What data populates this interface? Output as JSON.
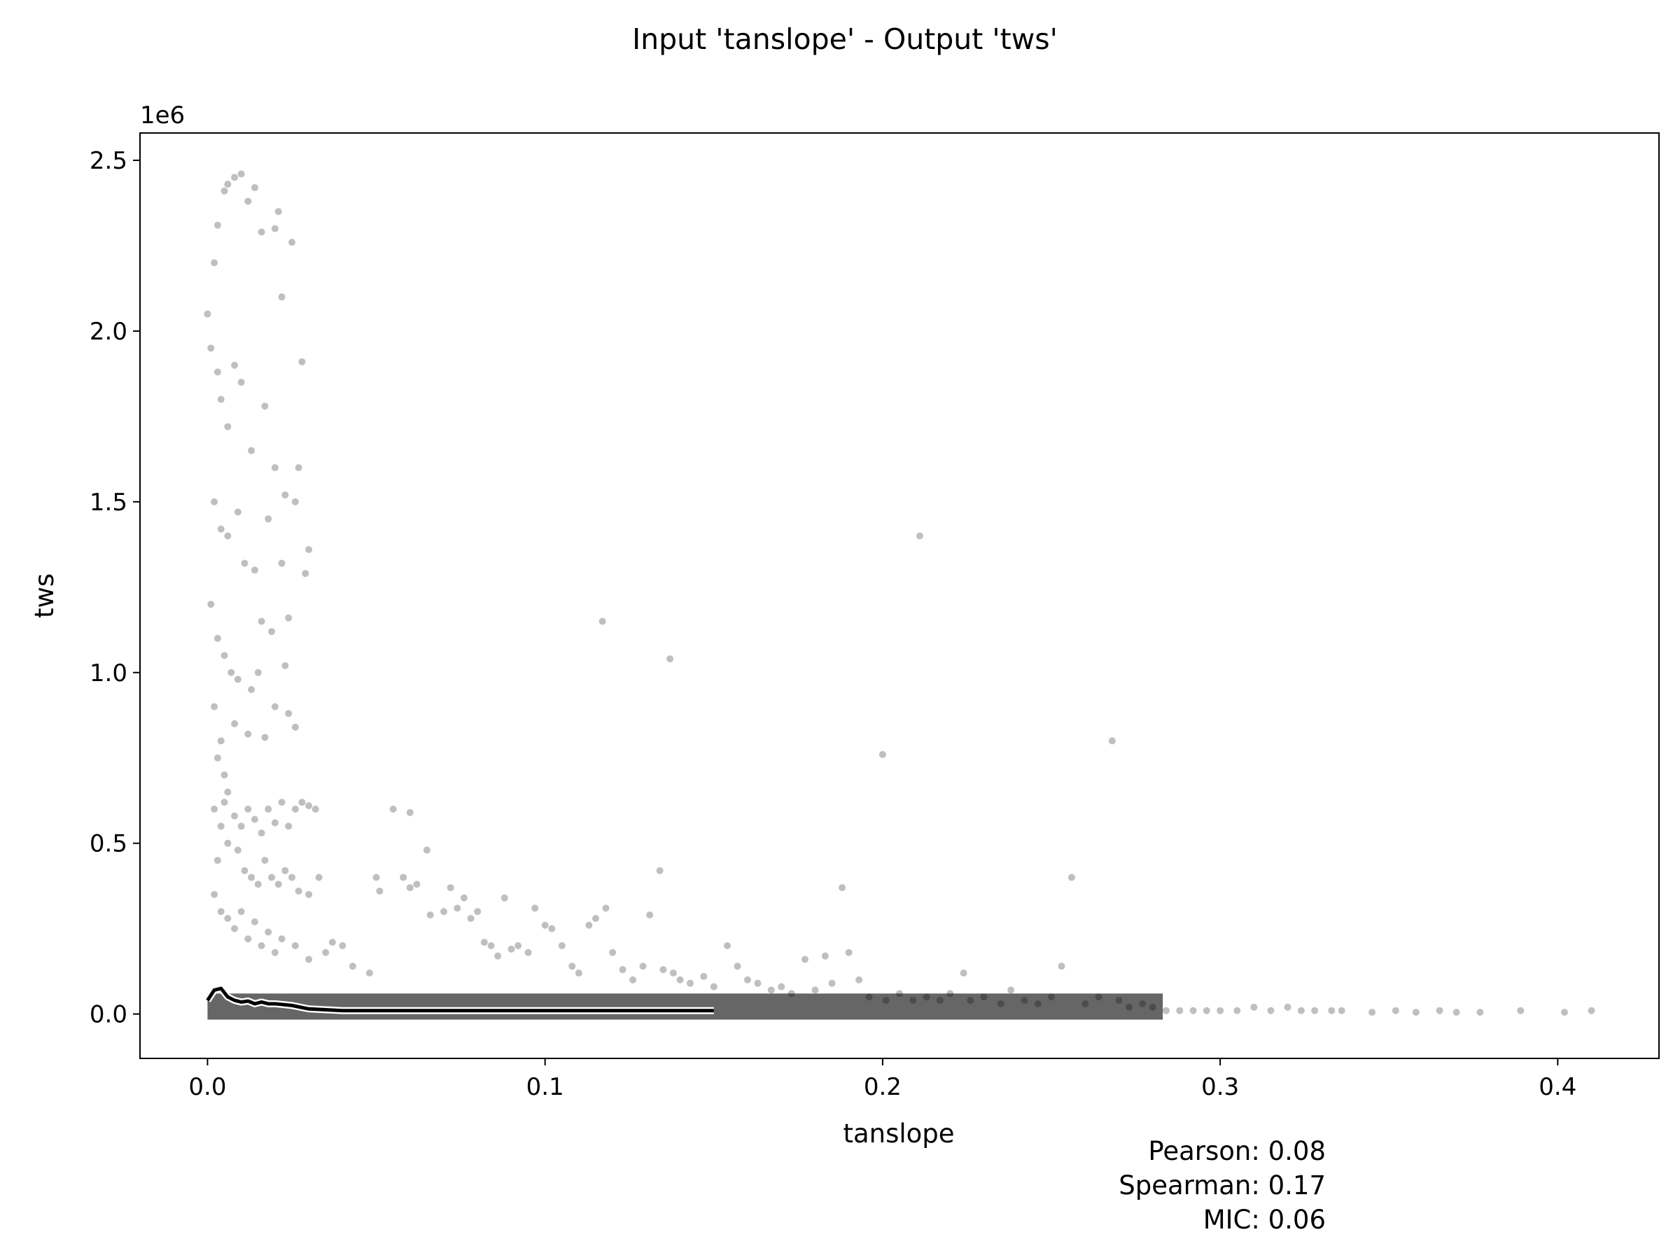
{
  "chart_data": {
    "type": "scatter",
    "title": "Input 'tanslope' - Output 'tws'",
    "xlabel": "tanslope",
    "ylabel": "tws",
    "y_offset_label": "1e6",
    "xlim": [
      -0.02,
      0.43
    ],
    "ylim": [
      -0.13,
      2.58
    ],
    "x_ticks": [
      0.0,
      0.1,
      0.2,
      0.3,
      0.4
    ],
    "x_tick_labels": [
      "0.0",
      "0.1",
      "0.2",
      "0.3",
      "0.4"
    ],
    "y_ticks": [
      0.0,
      0.5,
      1.0,
      1.5,
      2.0,
      2.5
    ],
    "y_tick_labels": [
      "0.0",
      "0.5",
      "1.0",
      "1.5",
      "2.0",
      "2.5"
    ],
    "grid": false,
    "marker_color": "#000000",
    "marker_opacity": 0.25,
    "trend_line_color": "#000000",
    "trend_line_outline": "#ffffff",
    "series": [
      {
        "values": [
          [
            0.0,
            2.05
          ],
          [
            0.002,
            2.2
          ],
          [
            0.003,
            2.31
          ],
          [
            0.005,
            2.41
          ],
          [
            0.006,
            2.43
          ],
          [
            0.008,
            2.45
          ],
          [
            0.01,
            2.46
          ],
          [
            0.012,
            2.38
          ],
          [
            0.014,
            2.42
          ],
          [
            0.016,
            2.29
          ],
          [
            0.02,
            2.3
          ],
          [
            0.022,
            2.1
          ],
          [
            0.025,
            2.26
          ],
          [
            0.021,
            2.35
          ],
          [
            0.001,
            1.95
          ],
          [
            0.003,
            1.88
          ],
          [
            0.004,
            1.8
          ],
          [
            0.006,
            1.72
          ],
          [
            0.008,
            1.9
          ],
          [
            0.01,
            1.85
          ],
          [
            0.013,
            1.65
          ],
          [
            0.017,
            1.78
          ],
          [
            0.02,
            1.6
          ],
          [
            0.023,
            1.52
          ],
          [
            0.026,
            1.5
          ],
          [
            0.028,
            1.91
          ],
          [
            0.027,
            1.6
          ],
          [
            0.03,
            1.36
          ],
          [
            0.002,
            1.5
          ],
          [
            0.004,
            1.42
          ],
          [
            0.006,
            1.4
          ],
          [
            0.009,
            1.47
          ],
          [
            0.011,
            1.32
          ],
          [
            0.014,
            1.3
          ],
          [
            0.018,
            1.45
          ],
          [
            0.022,
            1.32
          ],
          [
            0.029,
            1.29
          ],
          [
            0.024,
            1.16
          ],
          [
            0.019,
            1.12
          ],
          [
            0.016,
            1.15
          ],
          [
            0.001,
            1.2
          ],
          [
            0.003,
            1.1
          ],
          [
            0.005,
            1.05
          ],
          [
            0.007,
            1.0
          ],
          [
            0.009,
            0.98
          ],
          [
            0.013,
            0.95
          ],
          [
            0.015,
            1.0
          ],
          [
            0.02,
            0.9
          ],
          [
            0.023,
            1.02
          ],
          [
            0.024,
            0.88
          ],
          [
            0.026,
            0.84
          ],
          [
            0.017,
            0.81
          ],
          [
            0.012,
            0.82
          ],
          [
            0.008,
            0.85
          ],
          [
            0.002,
            0.9
          ],
          [
            0.004,
            0.8
          ],
          [
            0.003,
            0.75
          ],
          [
            0.005,
            0.7
          ],
          [
            0.006,
            0.65
          ],
          [
            0.002,
            0.6
          ],
          [
            0.004,
            0.55
          ],
          [
            0.006,
            0.5
          ],
          [
            0.003,
            0.45
          ],
          [
            0.005,
            0.62
          ],
          [
            0.008,
            0.58
          ],
          [
            0.01,
            0.55
          ],
          [
            0.012,
            0.6
          ],
          [
            0.014,
            0.57
          ],
          [
            0.016,
            0.53
          ],
          [
            0.018,
            0.6
          ],
          [
            0.02,
            0.56
          ],
          [
            0.022,
            0.62
          ],
          [
            0.024,
            0.55
          ],
          [
            0.026,
            0.6
          ],
          [
            0.028,
            0.62
          ],
          [
            0.03,
            0.61
          ],
          [
            0.032,
            0.6
          ],
          [
            0.009,
            0.48
          ],
          [
            0.011,
            0.42
          ],
          [
            0.013,
            0.4
          ],
          [
            0.015,
            0.38
          ],
          [
            0.017,
            0.45
          ],
          [
            0.019,
            0.4
          ],
          [
            0.021,
            0.38
          ],
          [
            0.023,
            0.42
          ],
          [
            0.025,
            0.4
          ],
          [
            0.027,
            0.36
          ],
          [
            0.03,
            0.35
          ],
          [
            0.033,
            0.4
          ],
          [
            0.002,
            0.35
          ],
          [
            0.004,
            0.3
          ],
          [
            0.006,
            0.28
          ],
          [
            0.008,
            0.25
          ],
          [
            0.01,
            0.3
          ],
          [
            0.012,
            0.22
          ],
          [
            0.014,
            0.27
          ],
          [
            0.016,
            0.2
          ],
          [
            0.018,
            0.24
          ],
          [
            0.02,
            0.18
          ],
          [
            0.022,
            0.22
          ],
          [
            0.026,
            0.2
          ],
          [
            0.03,
            0.16
          ],
          [
            0.035,
            0.18
          ],
          [
            0.04,
            0.2
          ],
          [
            0.037,
            0.21
          ],
          [
            0.043,
            0.14
          ],
          [
            0.048,
            0.12
          ],
          [
            0.05,
            0.4
          ],
          [
            0.051,
            0.36
          ],
          [
            0.055,
            0.6
          ],
          [
            0.058,
            0.4
          ],
          [
            0.06,
            0.59
          ],
          [
            0.06,
            0.37
          ],
          [
            0.062,
            0.38
          ],
          [
            0.065,
            0.48
          ],
          [
            0.066,
            0.29
          ],
          [
            0.07,
            0.3
          ],
          [
            0.072,
            0.37
          ],
          [
            0.074,
            0.31
          ],
          [
            0.076,
            0.34
          ],
          [
            0.078,
            0.28
          ],
          [
            0.08,
            0.3
          ],
          [
            0.082,
            0.21
          ],
          [
            0.084,
            0.2
          ],
          [
            0.086,
            0.17
          ],
          [
            0.088,
            0.34
          ],
          [
            0.09,
            0.19
          ],
          [
            0.092,
            0.2
          ],
          [
            0.095,
            0.18
          ],
          [
            0.097,
            0.31
          ],
          [
            0.1,
            0.26
          ],
          [
            0.102,
            0.25
          ],
          [
            0.105,
            0.2
          ],
          [
            0.108,
            0.14
          ],
          [
            0.11,
            0.12
          ],
          [
            0.113,
            0.26
          ],
          [
            0.115,
            0.28
          ],
          [
            0.118,
            0.31
          ],
          [
            0.12,
            0.18
          ],
          [
            0.123,
            0.13
          ],
          [
            0.126,
            0.1
          ],
          [
            0.129,
            0.14
          ],
          [
            0.131,
            0.29
          ],
          [
            0.134,
            0.42
          ],
          [
            0.135,
            0.13
          ],
          [
            0.138,
            0.12
          ],
          [
            0.14,
            0.1
          ],
          [
            0.143,
            0.09
          ],
          [
            0.147,
            0.11
          ],
          [
            0.15,
            0.08
          ],
          [
            0.154,
            0.2
          ],
          [
            0.157,
            0.14
          ],
          [
            0.16,
            0.1
          ],
          [
            0.163,
            0.09
          ],
          [
            0.167,
            0.07
          ],
          [
            0.17,
            0.08
          ],
          [
            0.173,
            0.06
          ],
          [
            0.177,
            0.16
          ],
          [
            0.18,
            0.07
          ],
          [
            0.183,
            0.17
          ],
          [
            0.185,
            0.09
          ],
          [
            0.188,
            0.37
          ],
          [
            0.19,
            0.18
          ],
          [
            0.193,
            0.1
          ],
          [
            0.196,
            0.05
          ],
          [
            0.2,
            0.76
          ],
          [
            0.201,
            0.04
          ],
          [
            0.205,
            0.06
          ],
          [
            0.209,
            0.04
          ],
          [
            0.211,
            1.4
          ],
          [
            0.213,
            0.05
          ],
          [
            0.217,
            0.04
          ],
          [
            0.22,
            0.06
          ],
          [
            0.224,
            0.12
          ],
          [
            0.226,
            0.04
          ],
          [
            0.23,
            0.05
          ],
          [
            0.235,
            0.03
          ],
          [
            0.238,
            0.07
          ],
          [
            0.242,
            0.04
          ],
          [
            0.246,
            0.03
          ],
          [
            0.25,
            0.05
          ],
          [
            0.253,
            0.14
          ],
          [
            0.256,
            0.4
          ],
          [
            0.26,
            0.03
          ],
          [
            0.264,
            0.05
          ],
          [
            0.268,
            0.8
          ],
          [
            0.27,
            0.04
          ],
          [
            0.273,
            0.02
          ],
          [
            0.277,
            0.03
          ],
          [
            0.28,
            0.02
          ],
          [
            0.284,
            0.01
          ],
          [
            0.288,
            0.01
          ],
          [
            0.292,
            0.01
          ],
          [
            0.296,
            0.01
          ],
          [
            0.3,
            0.01
          ],
          [
            0.305,
            0.01
          ],
          [
            0.31,
            0.02
          ],
          [
            0.315,
            0.01
          ],
          [
            0.32,
            0.02
          ],
          [
            0.324,
            0.01
          ],
          [
            0.328,
            0.01
          ],
          [
            0.333,
            0.01
          ],
          [
            0.336,
            0.01
          ],
          [
            0.345,
            0.005
          ],
          [
            0.352,
            0.01
          ],
          [
            0.358,
            0.005
          ],
          [
            0.365,
            0.01
          ],
          [
            0.37,
            0.005
          ],
          [
            0.377,
            0.005
          ],
          [
            0.389,
            0.01
          ],
          [
            0.402,
            0.005
          ],
          [
            0.41,
            0.01
          ],
          [
            0.117,
            1.15
          ],
          [
            0.137,
            1.04
          ]
        ]
      }
    ],
    "dense_band": {
      "x_start": 0.0,
      "x_end": 0.283,
      "y_low": 0.0,
      "y_high": 0.06
    },
    "trend_line": {
      "x": [
        0.0,
        0.002,
        0.004,
        0.006,
        0.008,
        0.01,
        0.012,
        0.014,
        0.016,
        0.018,
        0.02,
        0.025,
        0.03,
        0.04,
        0.06,
        0.1,
        0.15
      ],
      "y": [
        0.04,
        0.07,
        0.075,
        0.05,
        0.04,
        0.035,
        0.038,
        0.03,
        0.035,
        0.03,
        0.03,
        0.025,
        0.015,
        0.01,
        0.01,
        0.01,
        0.01
      ]
    },
    "annotations": [
      {
        "text": "Pearson: 0.08"
      },
      {
        "text": "Spearman: 0.17"
      },
      {
        "text": "MIC: 0.06"
      }
    ]
  }
}
